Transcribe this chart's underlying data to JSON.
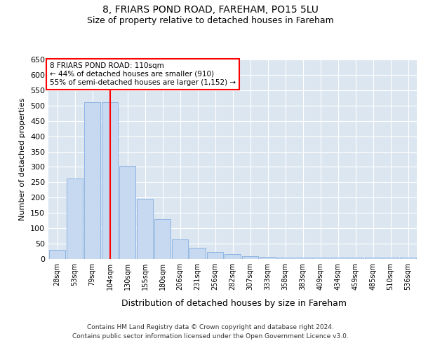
{
  "title1": "8, FRIARS POND ROAD, FAREHAM, PO15 5LU",
  "title2": "Size of property relative to detached houses in Fareham",
  "xlabel": "Distribution of detached houses by size in Fareham",
  "ylabel": "Number of detached properties",
  "categories": [
    "28sqm",
    "53sqm",
    "79sqm",
    "104sqm",
    "130sqm",
    "155sqm",
    "180sqm",
    "206sqm",
    "231sqm",
    "256sqm",
    "282sqm",
    "307sqm",
    "333sqm",
    "358sqm",
    "383sqm",
    "409sqm",
    "434sqm",
    "459sqm",
    "485sqm",
    "510sqm",
    "536sqm"
  ],
  "values": [
    30,
    263,
    512,
    510,
    303,
    196,
    130,
    65,
    37,
    22,
    15,
    10,
    6,
    5,
    5,
    4,
    5,
    5,
    5,
    5,
    5
  ],
  "bar_color": "#c6d9f0",
  "bar_edge_color": "#8db4e2",
  "red_line_index": 3,
  "annotation_line1": "8 FRIARS POND ROAD: 110sqm",
  "annotation_line2": "← 44% of detached houses are smaller (910)",
  "annotation_line3": "55% of semi-detached houses are larger (1,152) →",
  "ylim_max": 650,
  "yticks": [
    0,
    50,
    100,
    150,
    200,
    250,
    300,
    350,
    400,
    450,
    500,
    550,
    600,
    650
  ],
  "footer1": "Contains HM Land Registry data © Crown copyright and database right 2024.",
  "footer2": "Contains public sector information licensed under the Open Government Licence v3.0.",
  "bg_color": "#dce6f1",
  "fig_bg_color": "#ffffff"
}
